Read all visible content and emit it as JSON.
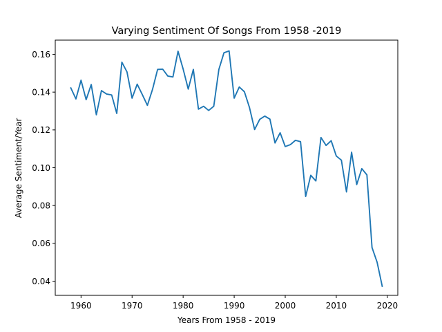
{
  "chart_data": {
    "type": "line",
    "title": "Varying Sentiment Of Songs From 1958 -2019",
    "xlabel": "Years From 1958 - 2019",
    "ylabel": "Average Sentiment/Year",
    "xlim": [
      1954.95,
      2022.05
    ],
    "ylim": [
      0.0325,
      0.1675
    ],
    "xticks": [
      1960,
      1970,
      1980,
      1990,
      2000,
      2010,
      2020
    ],
    "xtick_labels": [
      "1960",
      "1970",
      "1980",
      "1990",
      "2000",
      "2010",
      "2020"
    ],
    "yticks": [
      0.04,
      0.06,
      0.08,
      0.1,
      0.12,
      0.14,
      0.16
    ],
    "ytick_labels": [
      "0.04",
      "0.06",
      "0.08",
      "0.10",
      "0.12",
      "0.14",
      "0.16"
    ],
    "grid": false,
    "legend": false,
    "line_color": "#1f77b4",
    "series": [
      {
        "x": [
          1958,
          1959,
          1960,
          1961,
          1962,
          1963,
          1964,
          1965,
          1966,
          1967,
          1968,
          1969,
          1970,
          1971,
          1972,
          1973,
          1974,
          1975,
          1976,
          1977,
          1978,
          1979,
          1980,
          1981,
          1982,
          1983,
          1984,
          1985,
          1986,
          1987,
          1988,
          1989,
          1990,
          1991,
          1992,
          1993,
          1994,
          1995,
          1996,
          1997,
          1998,
          1999,
          2000,
          2001,
          2002,
          2003,
          2004,
          2005,
          2006,
          2007,
          2008,
          2009,
          2010,
          2011,
          2012,
          2013,
          2014,
          2015,
          2016,
          2017,
          2018,
          2019
        ],
        "values": [
          0.1422,
          0.1364,
          0.1463,
          0.136,
          0.144,
          0.128,
          0.1408,
          0.139,
          0.1385,
          0.1287,
          0.1558,
          0.1507,
          0.1368,
          0.1442,
          0.1387,
          0.133,
          0.1414,
          0.152,
          0.1521,
          0.1485,
          0.148,
          0.1616,
          0.1522,
          0.1416,
          0.152,
          0.131,
          0.1325,
          0.1303,
          0.1325,
          0.152,
          0.1608,
          0.1618,
          0.1368,
          0.1427,
          0.1402,
          0.1318,
          0.1202,
          0.1256,
          0.1273,
          0.1257,
          0.1131,
          0.1185,
          0.1112,
          0.1122,
          0.1145,
          0.1138,
          0.0848,
          0.096,
          0.093,
          0.116,
          0.1118,
          0.1143,
          0.1062,
          0.104,
          0.0872,
          0.1082,
          0.0911,
          0.0995,
          0.0962,
          0.0578,
          0.05,
          0.0373
        ]
      }
    ]
  }
}
